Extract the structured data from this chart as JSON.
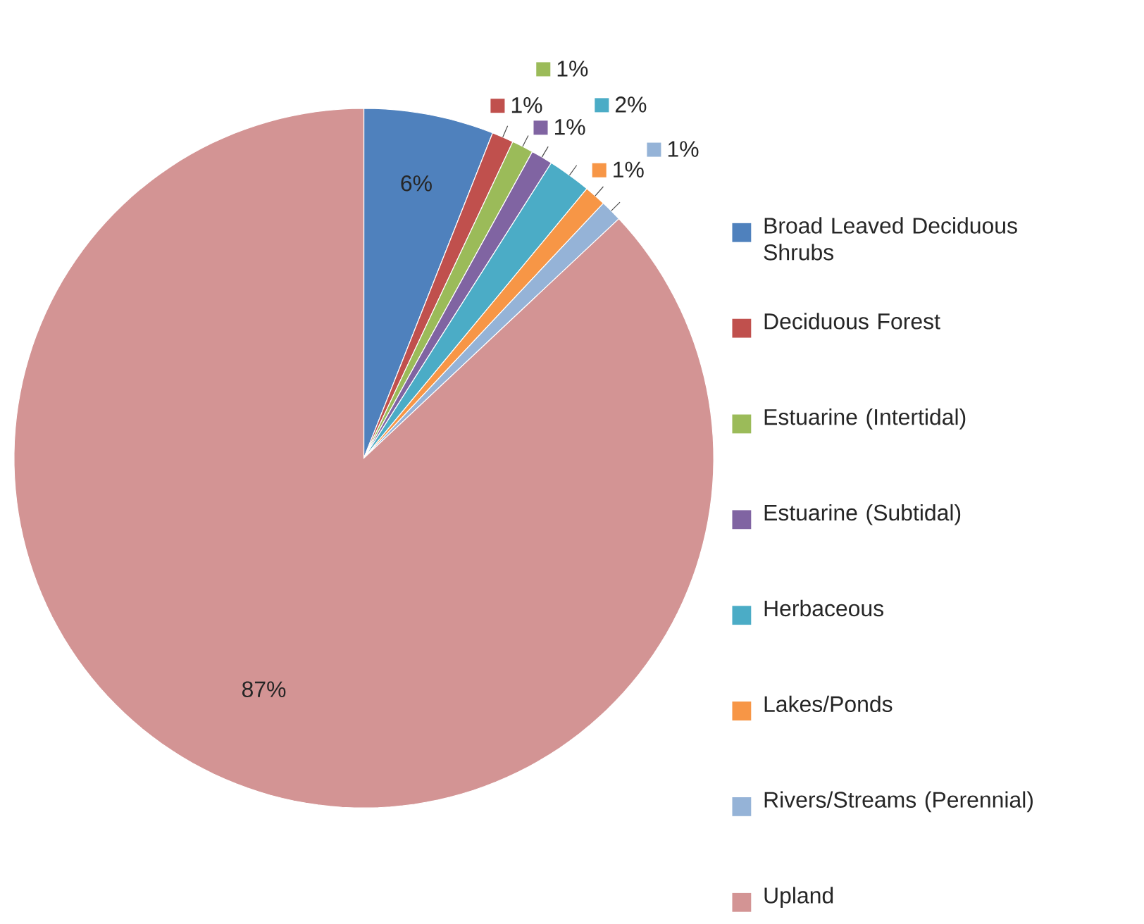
{
  "chart_data": {
    "type": "pie",
    "categories": [
      "Broad Leaved Deciduous Shrubs",
      "Deciduous Forest",
      "Estuarine (Intertidal)",
      "Estuarine (Subtidal)",
      "Herbaceous",
      "Lakes/Ponds",
      "Rivers/Streams (Perennial)",
      "Upland"
    ],
    "values": [
      6,
      1,
      1,
      1,
      2,
      1,
      1,
      87
    ],
    "colors": [
      "#4f81bd",
      "#c0504d",
      "#9bbb59",
      "#8064a2",
      "#4bacc6",
      "#f79646",
      "#95b3d7",
      "#d39494"
    ],
    "value_labels": [
      "6%",
      "1%",
      "1%",
      "1%",
      "2%",
      "1%",
      "1%",
      "87%"
    ],
    "legend": "right"
  }
}
